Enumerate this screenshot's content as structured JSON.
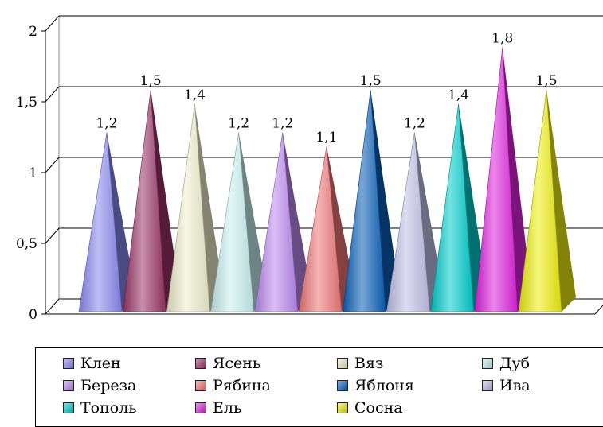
{
  "chart_data": {
    "type": "bar",
    "shape": "cone",
    "categories": [
      "Клен",
      "Ясень",
      "Вяз",
      "Дуб",
      "Береза",
      "Рябина",
      "Яблоня",
      "Ива",
      "Тополь",
      "Ель",
      "Сосна"
    ],
    "values": [
      1.2,
      1.5,
      1.4,
      1.2,
      1.2,
      1.1,
      1.5,
      1.2,
      1.4,
      1.8,
      1.5
    ],
    "value_labels": [
      "1,2",
      "1,5",
      "1,4",
      "1,2",
      "1,2",
      "1,1",
      "1,5",
      "1,2",
      "1,4",
      "1,8",
      "1,5"
    ],
    "colors": [
      "#8888ee",
      "#993366",
      "#eeeecc",
      "#c8f0f0",
      "#bb88ee",
      "#ee7777",
      "#0a5fb8",
      "#c0c0e8",
      "#00cccc",
      "#dd22dd",
      "#eeee11"
    ],
    "ylim": [
      0,
      2
    ],
    "y_ticks": [
      "0",
      "0,5",
      "1",
      "1,5",
      "2"
    ],
    "grid": true,
    "legend_position": "bottom"
  }
}
